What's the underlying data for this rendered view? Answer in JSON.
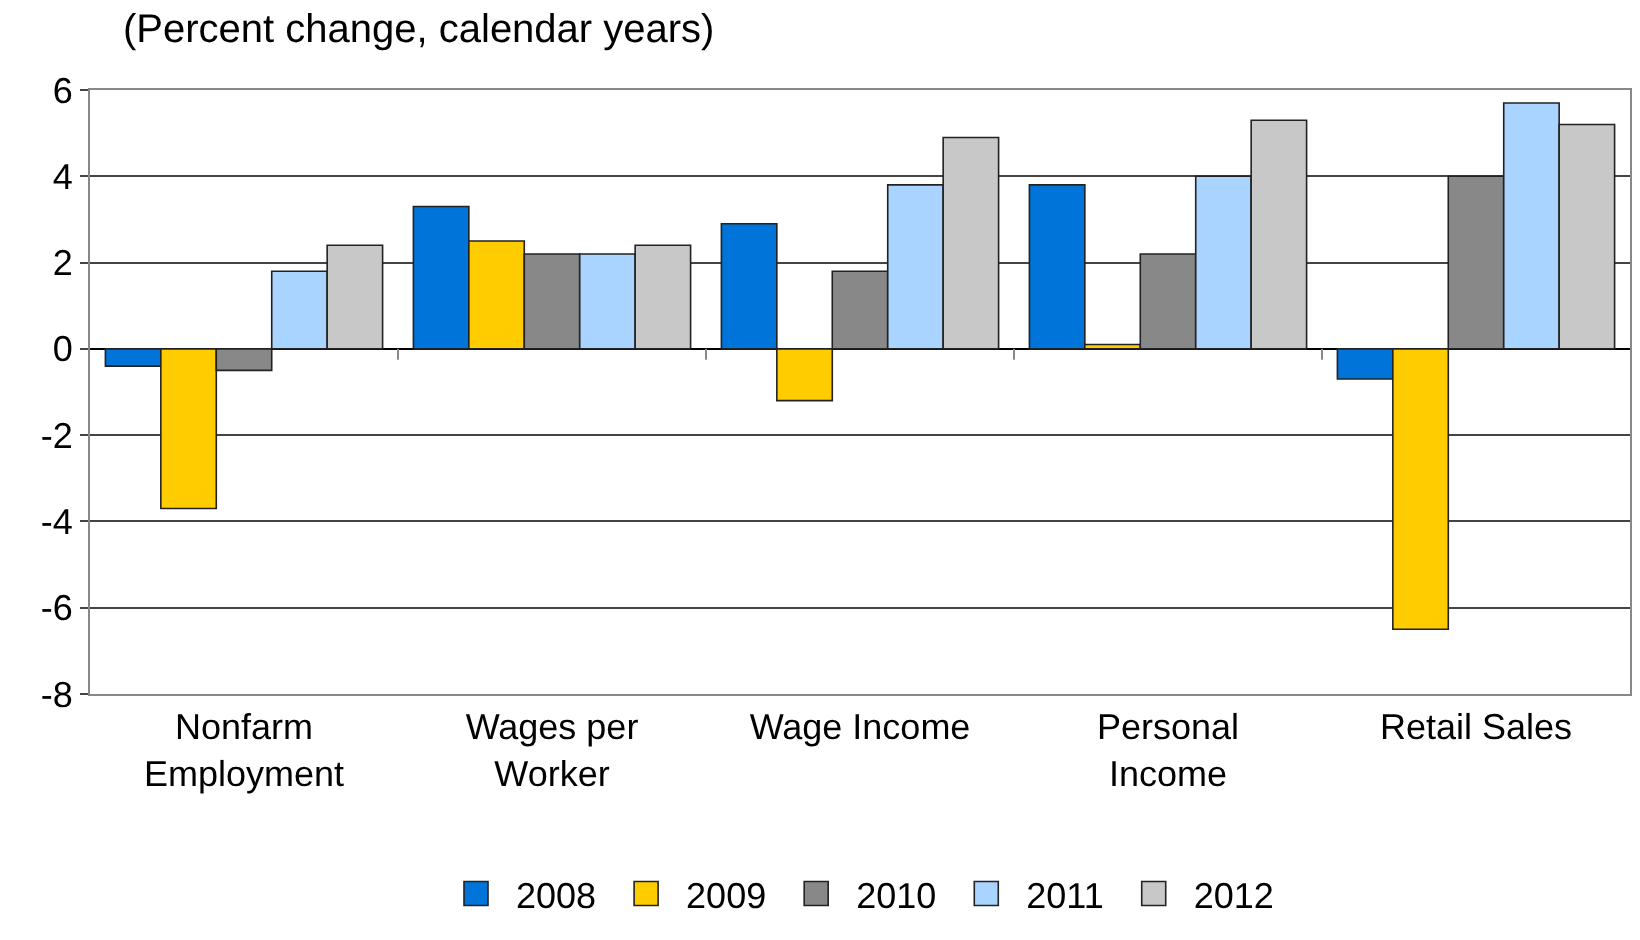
{
  "chart_data": {
    "type": "bar",
    "title": "(Percent change, calendar years)",
    "categories": [
      "Nonfarm Employment",
      "Wages per Worker",
      "Wage Income",
      "Personal Income",
      "Retail Sales"
    ],
    "series": [
      {
        "name": "2008",
        "color": "#0074d9",
        "values": [
          -0.4,
          3.3,
          2.9,
          3.8,
          -0.7
        ]
      },
      {
        "name": "2009",
        "color": "#ffcc00",
        "values": [
          -3.7,
          2.5,
          -1.2,
          0.1,
          -6.5
        ]
      },
      {
        "name": "2010",
        "color": "#888888",
        "values": [
          -0.5,
          2.2,
          1.8,
          2.2,
          4.0
        ]
      },
      {
        "name": "2011",
        "color": "#a8d4ff",
        "values": [
          1.8,
          2.2,
          3.8,
          4.0,
          5.7
        ]
      },
      {
        "name": "2012",
        "color": "#c8c8c8",
        "values": [
          2.4,
          2.4,
          4.9,
          5.3,
          5.2
        ]
      }
    ],
    "ylim": [
      -8,
      6
    ],
    "yticks": [
      -8,
      -6,
      -4,
      -2,
      0,
      2,
      4,
      6
    ],
    "grid": "y",
    "legend": "bottom"
  }
}
